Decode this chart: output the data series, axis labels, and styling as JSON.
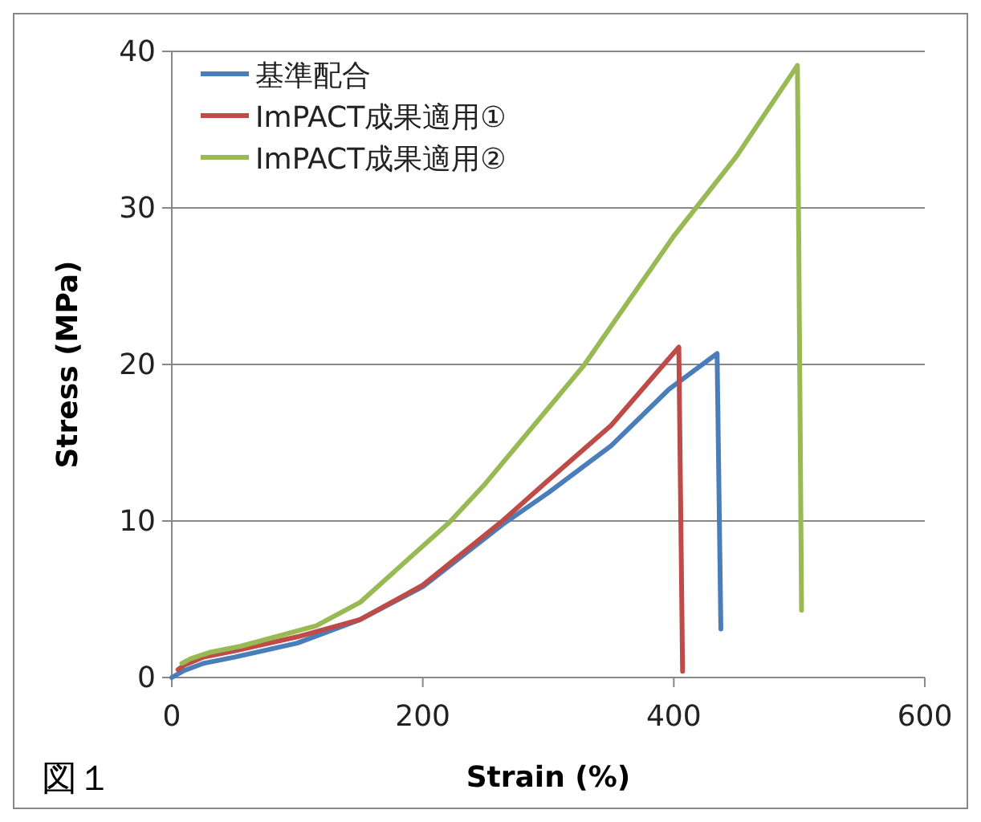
{
  "chart_data": {
    "type": "line",
    "xlabel": "Strain (%)",
    "ylabel": "Stress (MPa)",
    "xlim": [
      0,
      600
    ],
    "xticks": [
      0,
      200,
      400,
      600
    ],
    "ylim": [
      0,
      40
    ],
    "yticks": [
      0,
      10,
      20,
      30,
      40
    ],
    "grid": "y",
    "legend": "top left",
    "annotations": [
      "図１"
    ],
    "series": [
      {
        "name": "基準配合",
        "color": "#4a7ebb",
        "x": [
          0,
          10,
          25,
          50,
          100,
          150,
          200,
          264,
          300,
          350,
          396,
          434.5,
          437.5
        ],
        "values": [
          0,
          0.45,
          0.9,
          1.3,
          2.2,
          3.7,
          5.8,
          9.8,
          11.8,
          14.8,
          18.4,
          20.7,
          3.1
        ]
      },
      {
        "name": "ImPACT成果適用①",
        "color": "#be4b48",
        "x": [
          5,
          10,
          25,
          50,
          100,
          150,
          200,
          262,
          300,
          350,
          392,
          404,
          407
        ],
        "values": [
          0.5,
          0.8,
          1.3,
          1.7,
          2.6,
          3.7,
          5.9,
          9.9,
          12.6,
          16.1,
          20,
          21.1,
          0.4
        ]
      },
      {
        "name": "ImPACT成果適用②",
        "color": "#98b954",
        "x": [
          8,
          15,
          30,
          55,
          115,
          150,
          221,
          250,
          328,
          400,
          450,
          498.5,
          501.8
        ],
        "values": [
          0.9,
          1.2,
          1.6,
          2.0,
          3.3,
          4.8,
          9.9,
          12.4,
          19.9,
          28.2,
          33.3,
          39.1,
          4.3
        ]
      }
    ]
  }
}
